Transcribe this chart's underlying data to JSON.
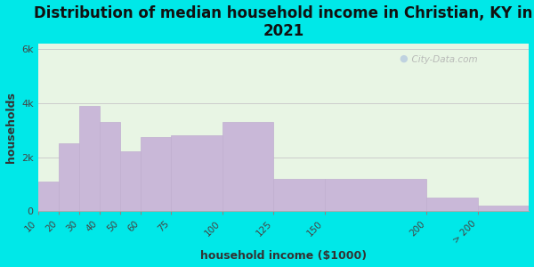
{
  "title": "Distribution of median household income in Christian, KY in\n2021",
  "xlabel": "household income ($1000)",
  "ylabel": "households",
  "bin_edges": [
    10,
    20,
    30,
    40,
    50,
    60,
    75,
    100,
    125,
    150,
    200,
    225,
    250
  ],
  "tick_positions": [
    10,
    20,
    30,
    40,
    50,
    60,
    75,
    100,
    125,
    150,
    200,
    225
  ],
  "tick_labels": [
    "10",
    "20",
    "30",
    "40",
    "50",
    "60",
    "75",
    "100",
    "125",
    "150",
    "200",
    "> 200"
  ],
  "bar_values": [
    1100,
    2500,
    3900,
    3300,
    2200,
    2750,
    2800,
    3300,
    1200,
    1200,
    500,
    200
  ],
  "bar_color": "#c9b8d8",
  "bar_edgecolor": "#c0afd0",
  "background_outer": "#00e8e8",
  "background_inner": "#e8f5e4",
  "ytick_labels": [
    "0",
    "2k",
    "4k",
    "6k"
  ],
  "ytick_values": [
    0,
    2000,
    4000,
    6000
  ],
  "ylim": [
    0,
    6200
  ],
  "title_fontsize": 12,
  "axis_label_fontsize": 9,
  "watermark": "  City-Data.com"
}
